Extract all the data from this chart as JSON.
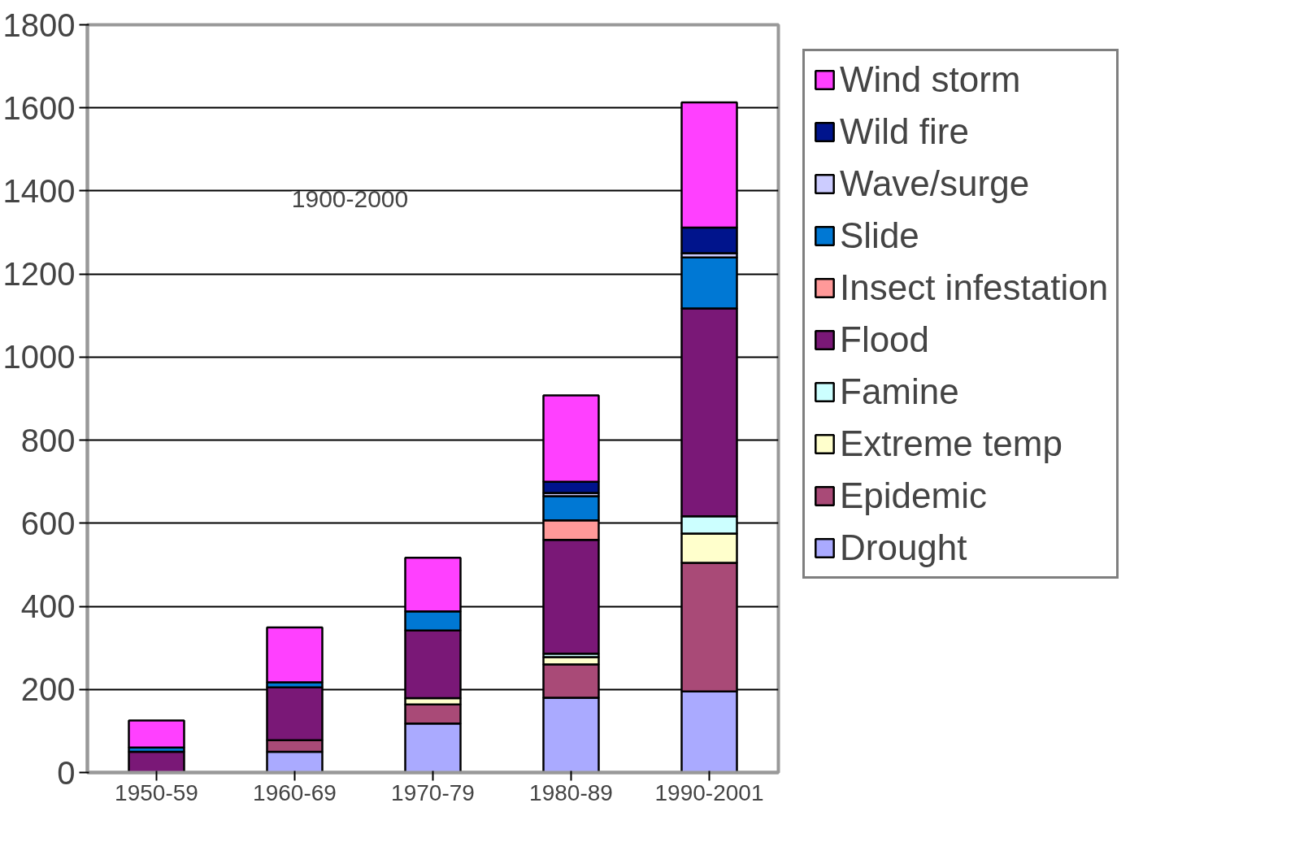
{
  "chart_data": {
    "type": "bar",
    "stacked": true,
    "categories": [
      "1950-59",
      "1960-69",
      "1970-79",
      "1980-89",
      "1990-2001"
    ],
    "series": [
      {
        "name": "Drought",
        "color": "#aaaaff",
        "values": [
          null,
          50,
          118,
          180,
          195
        ]
      },
      {
        "name": "Epidemic",
        "color": "#a94a77",
        "values": [
          null,
          28,
          46,
          80,
          310
        ]
      },
      {
        "name": "Extreme temp",
        "color": "#ffffcc",
        "values": [
          null,
          null,
          15,
          18,
          70
        ]
      },
      {
        "name": "Famine",
        "color": "#ccffff",
        "values": [
          null,
          null,
          null,
          8,
          42
        ]
      },
      {
        "name": "Flood",
        "color": "#7a1877",
        "values": [
          50,
          127,
          163,
          274,
          500
        ]
      },
      {
        "name": "Insect infestation",
        "color": "#ff9999",
        "values": [
          null,
          null,
          null,
          47,
          null
        ]
      },
      {
        "name": "Slide",
        "color": "#0078d4",
        "values": [
          10,
          12,
          46,
          58,
          123
        ]
      },
      {
        "name": "Wave/surge",
        "color": "#ccccff",
        "values": [
          null,
          null,
          null,
          8,
          10
        ]
      },
      {
        "name": "Wild fire",
        "color": "#00148c",
        "values": [
          null,
          null,
          null,
          27,
          62
        ]
      },
      {
        "name": "Wind storm",
        "color": "#ff40ff",
        "values": [
          65,
          132,
          129,
          208,
          301
        ]
      }
    ],
    "ylim": [
      0,
      1800
    ],
    "yticks": [
      0,
      200,
      400,
      600,
      800,
      1000,
      1200,
      1400,
      1600,
      1800
    ],
    "grid": "y",
    "legend": "right",
    "annotations": [
      "1900-2000"
    ]
  }
}
